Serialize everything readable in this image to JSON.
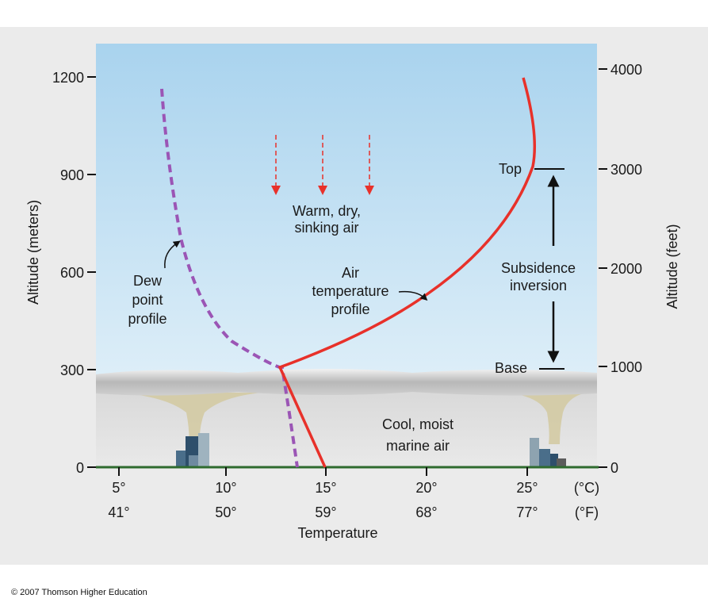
{
  "axes": {
    "left_label": "Altitude (meters)",
    "right_label": "Altitude (feet)",
    "bottom_label": "Temperature",
    "left_ticks": [
      "0",
      "300",
      "600",
      "900",
      "1200"
    ],
    "right_ticks": [
      "0",
      "1000",
      "2000",
      "3000",
      "4000"
    ],
    "celsius_ticks": [
      "5°",
      "10°",
      "15°",
      "20°",
      "25°"
    ],
    "fahrenheit_ticks": [
      "41°",
      "50°",
      "59°",
      "68°",
      "77°"
    ],
    "celsius_unit": "(°C)",
    "fahrenheit_unit": "(°F)"
  },
  "labels": {
    "sinking_air": [
      "Warm, dry,",
      "sinking air"
    ],
    "dew_point": [
      "Dew",
      "point",
      "profile"
    ],
    "air_temp": [
      "Air",
      "temperature",
      "profile"
    ],
    "subsidence": [
      "Subsidence",
      "inversion"
    ],
    "top": "Top",
    "base": "Base",
    "marine_air": [
      "Cool, moist",
      "marine air"
    ]
  },
  "colors": {
    "air_temperature_line": "#e8312a",
    "dew_point_line": "#9b55b5",
    "sinking_arrows": "#e8312a",
    "ground_line": "#2f6b2f"
  },
  "copyright": "© 2007 Thomson Higher Education"
}
